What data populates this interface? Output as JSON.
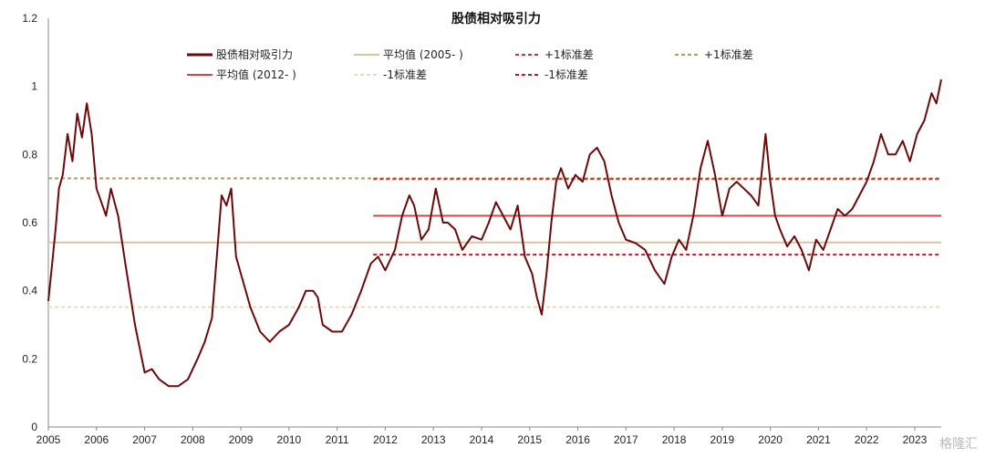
{
  "chart_data": {
    "type": "line",
    "title": "股债相对吸引力",
    "xlabel": "",
    "ylabel": "",
    "xlim": [
      2005.0,
      2023.55
    ],
    "ylim": [
      0,
      1.2
    ],
    "yticks": [
      "0",
      "0.2",
      "0.4",
      "0.6",
      "0.8",
      "1",
      "1.2"
    ],
    "xticks": [
      "2005",
      "2006",
      "2007",
      "2008",
      "2009",
      "2010",
      "2011",
      "2012",
      "2013",
      "2014",
      "2015",
      "2016",
      "2017",
      "2018",
      "2019",
      "2020",
      "2021",
      "2022",
      "2023"
    ],
    "grid": false,
    "legend_position": "top",
    "series": [
      {
        "name": "股债相对吸引力",
        "color": "#6b0a0a",
        "style": "solid",
        "x": [
          2005.0,
          2005.08,
          2005.15,
          2005.22,
          2005.3,
          2005.4,
          2005.5,
          2005.6,
          2005.7,
          2005.8,
          2005.9,
          2006.0,
          2006.1,
          2006.2,
          2006.3,
          2006.45,
          2006.6,
          2006.8,
          2007.0,
          2007.15,
          2007.3,
          2007.5,
          2007.7,
          2007.9,
          2008.1,
          2008.25,
          2008.4,
          2008.5,
          2008.6,
          2008.7,
          2008.8,
          2008.9,
          2009.0,
          2009.2,
          2009.4,
          2009.6,
          2009.8,
          2010.0,
          2010.2,
          2010.35,
          2010.5,
          2010.6,
          2010.7,
          2010.9,
          2011.1,
          2011.3,
          2011.5,
          2011.7,
          2011.85,
          2012.0,
          2012.2,
          2012.35,
          2012.5,
          2012.6,
          2012.75,
          2012.9,
          2013.05,
          2013.2,
          2013.3,
          2013.45,
          2013.6,
          2013.8,
          2014.0,
          2014.15,
          2014.3,
          2014.45,
          2014.6,
          2014.75,
          2014.9,
          2015.05,
          2015.15,
          2015.25,
          2015.35,
          2015.45,
          2015.55,
          2015.65,
          2015.8,
          2015.95,
          2016.1,
          2016.25,
          2016.4,
          2016.55,
          2016.7,
          2016.85,
          2017.0,
          2017.2,
          2017.4,
          2017.6,
          2017.8,
          2017.95,
          2018.1,
          2018.25,
          2018.4,
          2018.55,
          2018.7,
          2018.85,
          2019.0,
          2019.15,
          2019.3,
          2019.45,
          2019.6,
          2019.75,
          2019.9,
          2020.0,
          2020.1,
          2020.2,
          2020.35,
          2020.5,
          2020.65,
          2020.8,
          2020.95,
          2021.1,
          2021.25,
          2021.4,
          2021.55,
          2021.7,
          2021.85,
          2022.0,
          2022.15,
          2022.3,
          2022.45,
          2022.6,
          2022.75,
          2022.9,
          2023.05,
          2023.2,
          2023.35,
          2023.45,
          2023.55
        ],
        "y": [
          0.37,
          0.48,
          0.58,
          0.7,
          0.74,
          0.86,
          0.78,
          0.92,
          0.85,
          0.95,
          0.86,
          0.7,
          0.66,
          0.62,
          0.7,
          0.62,
          0.48,
          0.3,
          0.16,
          0.17,
          0.14,
          0.12,
          0.12,
          0.14,
          0.2,
          0.25,
          0.32,
          0.5,
          0.68,
          0.65,
          0.7,
          0.5,
          0.45,
          0.35,
          0.28,
          0.25,
          0.28,
          0.3,
          0.35,
          0.4,
          0.4,
          0.38,
          0.3,
          0.28,
          0.28,
          0.33,
          0.4,
          0.48,
          0.5,
          0.46,
          0.52,
          0.62,
          0.68,
          0.65,
          0.55,
          0.58,
          0.7,
          0.6,
          0.6,
          0.58,
          0.52,
          0.56,
          0.55,
          0.6,
          0.66,
          0.62,
          0.58,
          0.65,
          0.5,
          0.45,
          0.38,
          0.33,
          0.45,
          0.6,
          0.72,
          0.76,
          0.7,
          0.74,
          0.72,
          0.8,
          0.82,
          0.78,
          0.68,
          0.6,
          0.55,
          0.54,
          0.52,
          0.46,
          0.42,
          0.5,
          0.55,
          0.52,
          0.62,
          0.76,
          0.84,
          0.74,
          0.62,
          0.7,
          0.72,
          0.7,
          0.68,
          0.65,
          0.86,
          0.72,
          0.62,
          0.58,
          0.53,
          0.56,
          0.52,
          0.46,
          0.55,
          0.52,
          0.58,
          0.64,
          0.62,
          0.64,
          0.68,
          0.72,
          0.78,
          0.86,
          0.8,
          0.8,
          0.84,
          0.78,
          0.86,
          0.9,
          0.98,
          0.95,
          1.02
        ]
      },
      {
        "name": "平均值 (2005- )",
        "color": "#d9c3a0",
        "style": "solid",
        "x": [
          2005.0,
          2023.55
        ],
        "y": [
          0.542,
          0.542
        ]
      },
      {
        "name": "+1标准差",
        "color": "#c0392b",
        "style": "dashed",
        "x": [
          2011.75,
          2023.55
        ],
        "y": [
          0.728,
          0.728
        ]
      },
      {
        "name": "+1标准差",
        "color": "#b59a5a",
        "style": "dashed",
        "x": [
          2005.0,
          2023.55
        ],
        "y": [
          0.73,
          0.73
        ]
      },
      {
        "name": "平均值 (2012- )",
        "color": "#d64545",
        "style": "solid",
        "x": [
          2011.75,
          2023.55
        ],
        "y": [
          0.62,
          0.62
        ]
      },
      {
        "name": "-1标准差",
        "color": "#f0d9b8",
        "style": "dashed",
        "x": [
          2005.0,
          2023.55
        ],
        "y": [
          0.352,
          0.352
        ]
      },
      {
        "name": "-1标准差",
        "color": "#b81c1c",
        "style": "dashed",
        "x": [
          2011.75,
          2023.55
        ],
        "y": [
          0.506,
          0.506
        ]
      }
    ]
  },
  "watermark": "格隆汇"
}
